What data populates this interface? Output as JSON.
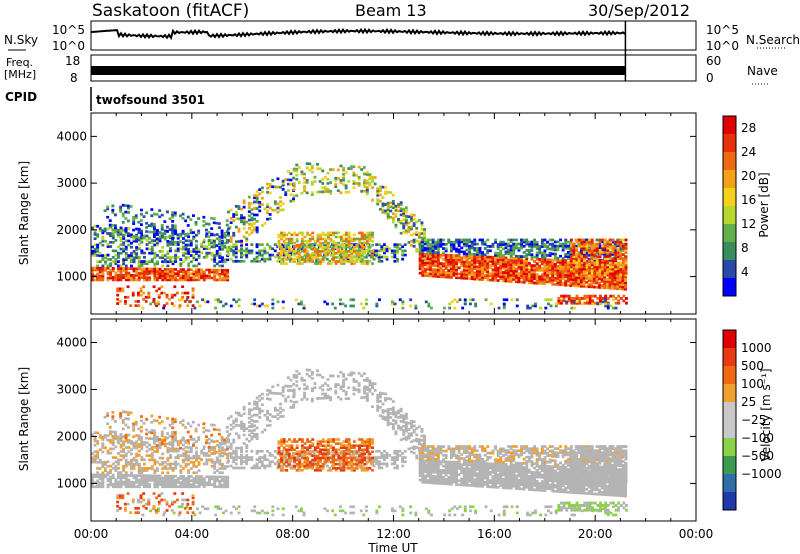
{
  "header": {
    "station": "Saskatoon (fitACF)",
    "beam": "Beam 13",
    "date": "30/Sep/2012"
  },
  "top_panels": {
    "nsky_label": "N.Sky",
    "nsky_ticks": [
      "10^5",
      "10^0"
    ],
    "nsearch_label": "N.Search",
    "nsearch_ticks": [
      "10^5",
      "10^0"
    ],
    "freq_label_1": "Freq.",
    "freq_label_2": "[MHz]",
    "freq_ticks": [
      "18",
      "8"
    ],
    "nave_label": "Nave",
    "nave_ticks": [
      "60",
      "0"
    ],
    "cpid_label": "CPID",
    "cpid_value": "twofsound 3501"
  },
  "colors": {
    "power_scale": [
      "#0000ff",
      "#2a4aa8",
      "#3a8c5e",
      "#63b04a",
      "#b8d62e",
      "#f2d21e",
      "#f5a01a",
      "#ef6a12",
      "#e8300c",
      "#e00000"
    ],
    "velocity_scale": [
      "#1f3aa8",
      "#2f6fa8",
      "#3c9a52",
      "#8bd24a",
      "#c8c8c8",
      "#c8c8c8",
      "#f0a030",
      "#ef6a12",
      "#e83a10",
      "#e00000"
    ],
    "ground_scatter": "#b4b4b4"
  },
  "chart_data": [
    {
      "type": "heatmap",
      "panel": "power",
      "ylabel": "Slant Range [km]",
      "ylim": [
        200,
        4500
      ],
      "yticks": [
        "1000",
        "2000",
        "3000",
        "4000"
      ],
      "x_hours_lim": [
        0,
        24
      ],
      "data_end_hour": 21.2,
      "colorbar_label": "Power [dB]",
      "colorbar_ticks": [
        "4",
        "8",
        "12",
        "16",
        "20",
        "24",
        "28"
      ],
      "colorbar_range": [
        0,
        30
      ]
    },
    {
      "type": "heatmap",
      "panel": "velocity",
      "ylabel": "Slant Range [km]",
      "ylim": [
        200,
        4500
      ],
      "yticks": [
        "1000",
        "2000",
        "3000",
        "4000"
      ],
      "x_hours_lim": [
        0,
        24
      ],
      "data_end_hour": 21.2,
      "colorbar_label": "Velocity [m s⁻¹]",
      "colorbar_ticks": [
        "1000",
        "500",
        "100",
        "25",
        "−25",
        "−100",
        "−500",
        "−1000"
      ]
    }
  ],
  "x_axis": {
    "label": "Time UT",
    "ticks": [
      "00:00",
      "04:00",
      "08:00",
      "12:00",
      "16:00",
      "20:00",
      "00:00"
    ]
  }
}
